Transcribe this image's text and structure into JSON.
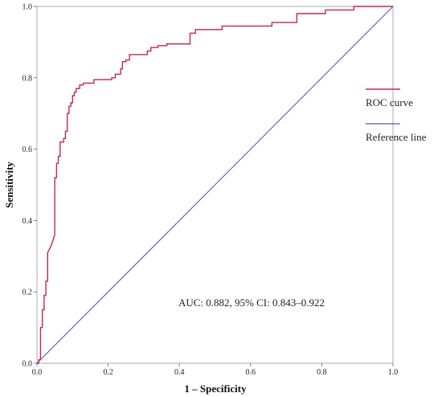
{
  "chart_data": {
    "type": "line",
    "xlabel": "1 – Specificity",
    "ylabel": "Sensitivity",
    "xlim": [
      0,
      1
    ],
    "ylim": [
      0,
      1
    ],
    "xticks": [
      "0.0",
      "0.2",
      "0.4",
      "0.6",
      "0.8",
      "1.0"
    ],
    "yticks": [
      "0.0",
      "0.2",
      "0.4",
      "0.6",
      "0.8",
      "1.0"
    ],
    "grid": false,
    "legend_position": "right",
    "annotation": "AUC: 0.882, 95% CI: 0.843–0.922",
    "series": [
      {
        "name": "ROC curve",
        "color": "#c8264f",
        "step": true,
        "points": [
          [
            0.0,
            0.0
          ],
          [
            0.005,
            0.0
          ],
          [
            0.005,
            0.01
          ],
          [
            0.01,
            0.01
          ],
          [
            0.01,
            0.1
          ],
          [
            0.015,
            0.1
          ],
          [
            0.015,
            0.15
          ],
          [
            0.02,
            0.15
          ],
          [
            0.02,
            0.19
          ],
          [
            0.025,
            0.19
          ],
          [
            0.025,
            0.23
          ],
          [
            0.03,
            0.23
          ],
          [
            0.03,
            0.31
          ],
          [
            0.04,
            0.33
          ],
          [
            0.05,
            0.36
          ],
          [
            0.05,
            0.52
          ],
          [
            0.055,
            0.52
          ],
          [
            0.055,
            0.56
          ],
          [
            0.06,
            0.56
          ],
          [
            0.06,
            0.58
          ],
          [
            0.065,
            0.58
          ],
          [
            0.065,
            0.62
          ],
          [
            0.075,
            0.62
          ],
          [
            0.075,
            0.63
          ],
          [
            0.08,
            0.63
          ],
          [
            0.08,
            0.65
          ],
          [
            0.085,
            0.65
          ],
          [
            0.085,
            0.7
          ],
          [
            0.09,
            0.7
          ],
          [
            0.09,
            0.72
          ],
          [
            0.095,
            0.72
          ],
          [
            0.095,
            0.73
          ],
          [
            0.1,
            0.73
          ],
          [
            0.1,
            0.75
          ],
          [
            0.105,
            0.75
          ],
          [
            0.105,
            0.76
          ],
          [
            0.11,
            0.76
          ],
          [
            0.11,
            0.77
          ],
          [
            0.12,
            0.77
          ],
          [
            0.12,
            0.78
          ],
          [
            0.13,
            0.78
          ],
          [
            0.13,
            0.785
          ],
          [
            0.16,
            0.785
          ],
          [
            0.16,
            0.795
          ],
          [
            0.21,
            0.795
          ],
          [
            0.21,
            0.8
          ],
          [
            0.22,
            0.8
          ],
          [
            0.22,
            0.81
          ],
          [
            0.235,
            0.81
          ],
          [
            0.235,
            0.825
          ],
          [
            0.24,
            0.825
          ],
          [
            0.24,
            0.845
          ],
          [
            0.25,
            0.845
          ],
          [
            0.25,
            0.85
          ],
          [
            0.26,
            0.85
          ],
          [
            0.26,
            0.865
          ],
          [
            0.31,
            0.865
          ],
          [
            0.31,
            0.875
          ],
          [
            0.32,
            0.875
          ],
          [
            0.32,
            0.885
          ],
          [
            0.34,
            0.885
          ],
          [
            0.34,
            0.89
          ],
          [
            0.365,
            0.89
          ],
          [
            0.365,
            0.895
          ],
          [
            0.43,
            0.895
          ],
          [
            0.43,
            0.925
          ],
          [
            0.445,
            0.925
          ],
          [
            0.445,
            0.935
          ],
          [
            0.52,
            0.935
          ],
          [
            0.52,
            0.945
          ],
          [
            0.66,
            0.945
          ],
          [
            0.66,
            0.955
          ],
          [
            0.73,
            0.955
          ],
          [
            0.73,
            0.98
          ],
          [
            0.81,
            0.98
          ],
          [
            0.81,
            0.99
          ],
          [
            0.89,
            0.99
          ],
          [
            0.89,
            1.0
          ],
          [
            1.0,
            1.0
          ]
        ]
      },
      {
        "name": "Reference line",
        "color": "#5a5ab8",
        "step": false,
        "points": [
          [
            0,
            0
          ],
          [
            1,
            1
          ]
        ]
      }
    ]
  }
}
